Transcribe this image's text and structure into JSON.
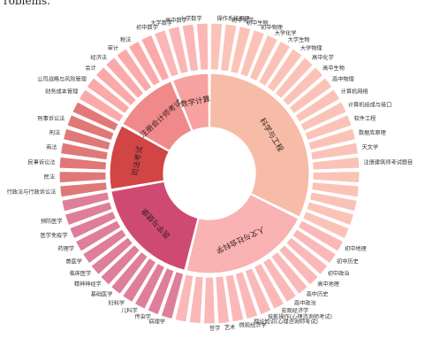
{
  "header": {
    "cut_text": "roblems."
  },
  "chart_data": {
    "type": "sunburst",
    "inner": [
      {
        "name": "科学与工程",
        "value": 21,
        "color": "#f6bca8"
      },
      {
        "name": "人文与社会科学",
        "value": 14,
        "color": "#f9b3b3"
      },
      {
        "name": "医学与健康",
        "value": 12,
        "color": "#cf4a72"
      },
      {
        "name": "司法考试",
        "value": 7,
        "color": "#d24545"
      },
      {
        "name": "注册会计师考试",
        "value": 7,
        "color": "#f08a8a"
      },
      {
        "name": "数学计算",
        "value": 4,
        "color": "#f7a1a1"
      }
    ],
    "outer": [
      {
        "name": "操作系统原理",
        "group": 0
      },
      {
        "name": "初中化学",
        "group": 0
      },
      {
        "name": "初中生物",
        "group": 0
      },
      {
        "name": "初中物理",
        "group": 0
      },
      {
        "name": "大学化学",
        "group": 0
      },
      {
        "name": "大学生物",
        "group": 0
      },
      {
        "name": "大学物理",
        "group": 0
      },
      {
        "name": "高中化学",
        "group": 0
      },
      {
        "name": "高中生物",
        "group": 0
      },
      {
        "name": "高中物理",
        "group": 0
      },
      {
        "name": "计算机网络",
        "group": 0
      },
      {
        "name": "计算机组成与接口",
        "group": 0
      },
      {
        "name": "软件工程",
        "group": 0
      },
      {
        "name": "数据库原理",
        "group": 0
      },
      {
        "name": "天文学",
        "group": 0
      },
      {
        "name": "注册建筑师考试题目",
        "group": 0
      },
      {
        "name": "",
        "group": 0
      },
      {
        "name": "",
        "group": 0
      },
      {
        "name": "",
        "group": 0
      },
      {
        "name": "",
        "group": 0
      },
      {
        "name": "",
        "group": 0
      },
      {
        "name": "初中地理",
        "group": 1
      },
      {
        "name": "初中历史",
        "group": 1
      },
      {
        "name": "初中政治",
        "group": 1
      },
      {
        "name": "高中地理",
        "group": 1
      },
      {
        "name": "高中历史",
        "group": 1
      },
      {
        "name": "高中政治",
        "group": 1
      },
      {
        "name": "宏观经济学",
        "group": 1
      },
      {
        "name": "技能操作(心理咨询师考试)",
        "group": 1
      },
      {
        "name": "理论知识(心理咨询师考试)",
        "group": 1
      },
      {
        "name": "微观经济学",
        "group": 1
      },
      {
        "name": "艺术",
        "group": 1
      },
      {
        "name": "哲学",
        "group": 1
      },
      {
        "name": "",
        "group": 1
      },
      {
        "name": "",
        "group": 1
      },
      {
        "name": "病理学",
        "group": 2
      },
      {
        "name": "传染学",
        "group": 2
      },
      {
        "name": "儿科学",
        "group": 2
      },
      {
        "name": "妇科学",
        "group": 2
      },
      {
        "name": "基础医学",
        "group": 2
      },
      {
        "name": "精神神经学",
        "group": 2
      },
      {
        "name": "临床医学",
        "group": 2
      },
      {
        "name": "兽医学",
        "group": 2
      },
      {
        "name": "药理学",
        "group": 2
      },
      {
        "name": "医学免疫学",
        "group": 2
      },
      {
        "name": "预防医学",
        "group": 2
      },
      {
        "name": "",
        "group": 2
      },
      {
        "name": "行政法与行政诉讼法",
        "group": 3
      },
      {
        "name": "民法",
        "group": 3
      },
      {
        "name": "民事诉讼法",
        "group": 3
      },
      {
        "name": "商法",
        "group": 3
      },
      {
        "name": "刑法",
        "group": 3
      },
      {
        "name": "刑事诉讼法",
        "group": 3
      },
      {
        "name": "",
        "group": 3
      },
      {
        "name": "财务成本管理",
        "group": 4
      },
      {
        "name": "公司战略与风险管理",
        "group": 4
      },
      {
        "name": "会计",
        "group": 4
      },
      {
        "name": "经济法",
        "group": 4
      },
      {
        "name": "审计",
        "group": 4
      },
      {
        "name": "税法",
        "group": 4
      },
      {
        "name": "",
        "group": 4
      },
      {
        "name": "初中数学",
        "group": 5
      },
      {
        "name": "大学数学",
        "group": 5
      },
      {
        "name": "高中数学",
        "group": 5
      },
      {
        "name": "小学数学",
        "group": 5
      }
    ],
    "outer_colors": [
      "#fbc3b7",
      "#fbb8b8",
      "#de7e9a",
      "#e07878",
      "#fba9a9",
      "#fbb6b6"
    ]
  }
}
